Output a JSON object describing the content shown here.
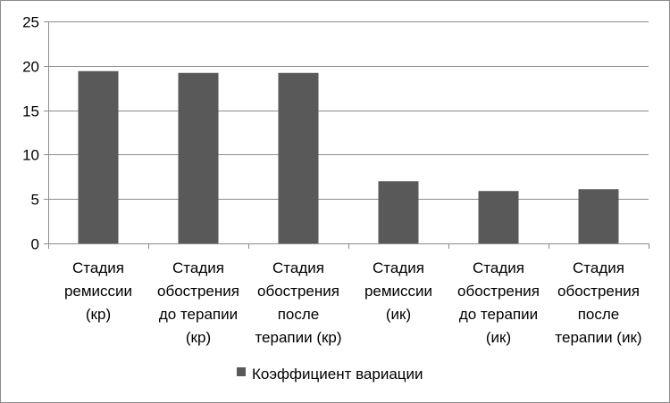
{
  "chart_data": {
    "type": "bar",
    "categories": [
      [
        "Стадия",
        "ремиссии",
        "(кр)"
      ],
      [
        "Стадия",
        "обострения",
        "до терапии",
        "(кр)"
      ],
      [
        "Стадия",
        "обострения",
        "после",
        "терапии (кр)"
      ],
      [
        "Стадия",
        "ремиссии",
        "(ик)"
      ],
      [
        "Стадия",
        "обострения",
        "до терапии",
        "(ик)"
      ],
      [
        "Стадия",
        "обострения",
        "после",
        "терапии (ик)"
      ]
    ],
    "series": [
      {
        "name": "Коэффициент вариации",
        "values": [
          19.4,
          19.2,
          19.2,
          7.0,
          5.9,
          6.1
        ],
        "color": "#595959"
      }
    ],
    "ylim": [
      0,
      25
    ],
    "yticks": [
      0,
      5,
      10,
      15,
      20,
      25
    ],
    "grid": true,
    "legend_position": "bottom",
    "title": "",
    "xlabel": "",
    "ylabel": ""
  }
}
